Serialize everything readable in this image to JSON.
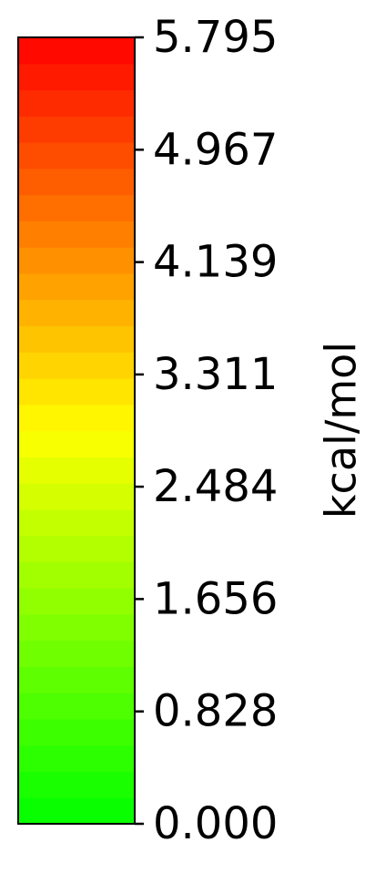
{
  "chart_data": {
    "type": "colorbar",
    "label": "kcal/mol",
    "orientation": "vertical",
    "colormap": [
      "#00ff00",
      "#ffff00",
      "#ff0000"
    ],
    "n_steps": 30,
    "vmin": 0.0,
    "vmax": 5.795,
    "ticks": [
      {
        "value": 0.0,
        "label": "0.000"
      },
      {
        "value": 0.828,
        "label": "0.828"
      },
      {
        "value": 1.656,
        "label": "1.656"
      },
      {
        "value": 2.484,
        "label": "2.484"
      },
      {
        "value": 3.311,
        "label": "3.311"
      },
      {
        "value": 4.139,
        "label": "4.139"
      },
      {
        "value": 4.967,
        "label": "4.967"
      },
      {
        "value": 5.795,
        "label": "5.795"
      }
    ]
  }
}
